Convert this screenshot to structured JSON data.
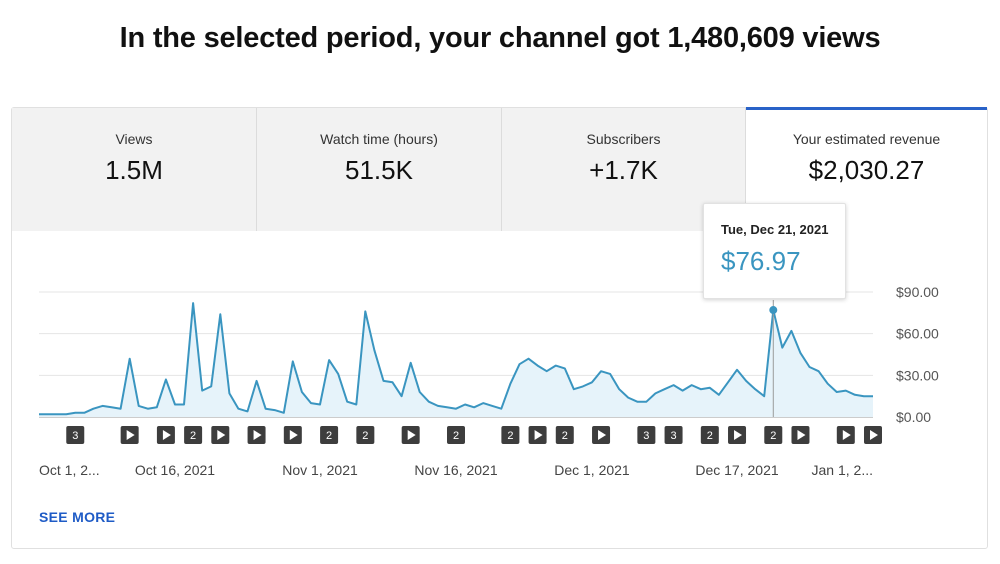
{
  "headline": "In the selected period, your channel got 1,480,609 views",
  "tabs": [
    {
      "label": "Views",
      "value": "1.5M",
      "active": false
    },
    {
      "label": "Watch time (hours)",
      "value": "51.5K",
      "active": false
    },
    {
      "label": "Subscribers",
      "value": "+1.7K",
      "active": false
    },
    {
      "label": "Your estimated revenue",
      "value": "$2,030.27",
      "active": true
    }
  ],
  "tooltip": {
    "date": "Tue, Dec 21, 2021",
    "value": "$76.97"
  },
  "see_more": "SEE MORE",
  "colors": {
    "line": "#3a95c0",
    "fill": "#e6f3fa",
    "accent": "#2962c8",
    "link": "#1e5bc6"
  },
  "chart_data": {
    "type": "area",
    "x_start": "Oct 1, 2021",
    "x_ticks": [
      "Oct 1, 2...",
      "Oct 16, 2021",
      "Nov 1, 2021",
      "Nov 16, 2021",
      "Dec 1, 2021",
      "Dec 17, 2021",
      "Jan 1, 2..."
    ],
    "x_tick_days": [
      0,
      15,
      31,
      46,
      61,
      77,
      92
    ],
    "y_ticks": [
      "$0.00",
      "$30.00",
      "$60.00",
      "$90.00"
    ],
    "y_tick_values": [
      0,
      30,
      60,
      90
    ],
    "ylim": [
      0,
      90
    ],
    "highlight_day": 81,
    "values": [
      2,
      2,
      2,
      2,
      3,
      3,
      6,
      8,
      7,
      6,
      42,
      8,
      6,
      7,
      27,
      9,
      9,
      82,
      19,
      22,
      74,
      17,
      6,
      4,
      26,
      6,
      5,
      3,
      40,
      18,
      10,
      9,
      41,
      31,
      11,
      9,
      76,
      48,
      26,
      25,
      15,
      39,
      18,
      11,
      8,
      7,
      6,
      9,
      7,
      10,
      8,
      6,
      24,
      38,
      42,
      37,
      33,
      37,
      35,
      20,
      22,
      25,
      33,
      31,
      20,
      14,
      11,
      11,
      17,
      20,
      23,
      19,
      23,
      20,
      21,
      16,
      25,
      34,
      26,
      20,
      15,
      77,
      50,
      62,
      46,
      36,
      33,
      24,
      18,
      19,
      16,
      15,
      15
    ],
    "markers": [
      {
        "day": 4,
        "label": "3"
      },
      {
        "day": 10,
        "label": "play"
      },
      {
        "day": 14,
        "label": "play"
      },
      {
        "day": 17,
        "label": "2"
      },
      {
        "day": 20,
        "label": "play"
      },
      {
        "day": 24,
        "label": "play"
      },
      {
        "day": 28,
        "label": "play"
      },
      {
        "day": 32,
        "label": "2"
      },
      {
        "day": 36,
        "label": "2"
      },
      {
        "day": 41,
        "label": "play"
      },
      {
        "day": 46,
        "label": "2"
      },
      {
        "day": 52,
        "label": "2"
      },
      {
        "day": 55,
        "label": "play"
      },
      {
        "day": 58,
        "label": "2"
      },
      {
        "day": 62,
        "label": "play"
      },
      {
        "day": 67,
        "label": "3"
      },
      {
        "day": 70,
        "label": "3"
      },
      {
        "day": 74,
        "label": "2"
      },
      {
        "day": 77,
        "label": "play"
      },
      {
        "day": 81,
        "label": "2"
      },
      {
        "day": 84,
        "label": "play"
      },
      {
        "day": 89,
        "label": "play"
      },
      {
        "day": 92,
        "label": "play"
      }
    ]
  }
}
